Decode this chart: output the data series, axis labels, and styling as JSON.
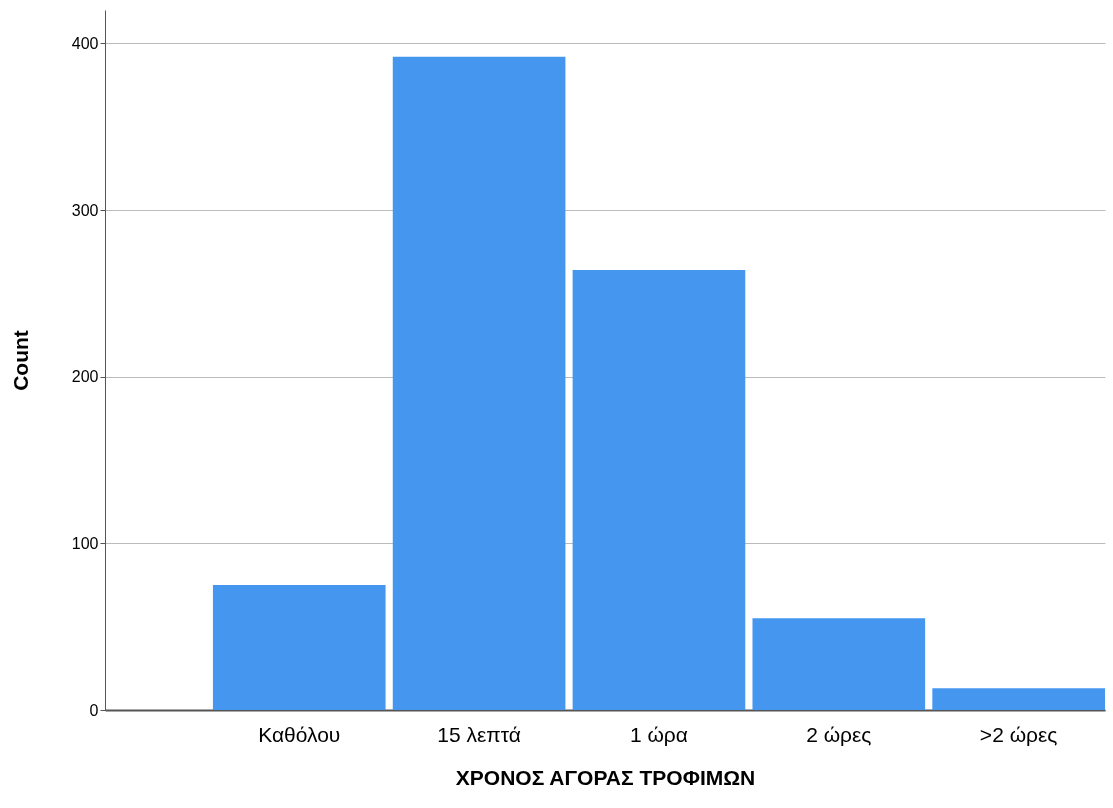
{
  "chart_data": {
    "type": "bar",
    "xlabel": "ΧΡΟΝΟΣ ΑΓΟΡΑΣ ΤΡΟΦΙΜΩΝ",
    "ylabel": "Count",
    "categories": [
      "Καθόλου",
      "15 λεπτά",
      "1 ώρα",
      "2 ώρες",
      ">2 ώρες"
    ],
    "values": [
      75,
      392,
      264,
      55,
      13
    ],
    "color": "#4596ee",
    "ylim": [
      0,
      420
    ],
    "yticks": [
      0,
      100,
      200,
      300,
      400
    ],
    "grid": "y"
  }
}
